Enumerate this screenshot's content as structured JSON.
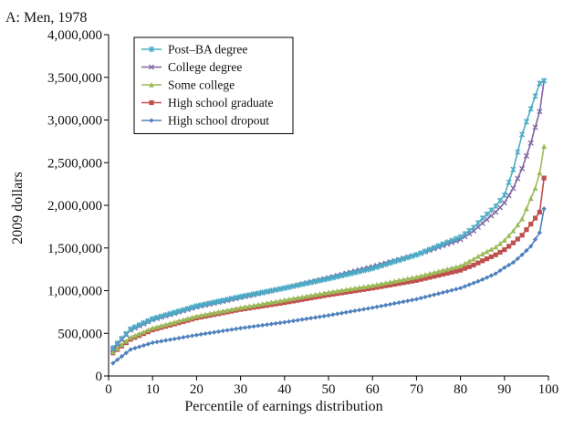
{
  "chart_data": {
    "type": "line",
    "title": "A: Men, 1978",
    "xlabel": "Percentile of earnings distribution",
    "ylabel": "2009 dollars",
    "xlim": [
      0,
      100
    ],
    "ylim": [
      0,
      4000000
    ],
    "xticks": [
      0,
      10,
      20,
      30,
      40,
      50,
      60,
      70,
      80,
      90,
      100
    ],
    "xtick_labels": [
      "0",
      "10",
      "20",
      "30",
      "40",
      "50",
      "60",
      "70",
      "80",
      "90",
      "100"
    ],
    "yticks": [
      0,
      500000,
      1000000,
      1500000,
      2000000,
      2500000,
      3000000,
      3500000,
      4000000
    ],
    "ytick_labels": [
      "0",
      "500,000",
      "1,000,000",
      "1,500,000",
      "2,000,000",
      "2,500,000",
      "3,000,000",
      "3,500,000",
      "4,000,000"
    ],
    "grid": false,
    "legend_position": "top-left",
    "series": [
      {
        "name": "Post–BA degree",
        "color": "#4bacc6",
        "marker": "star",
        "x": [
          1,
          5,
          10,
          20,
          30,
          40,
          50,
          60,
          70,
          80,
          83,
          85,
          88,
          90,
          92,
          94,
          96,
          98,
          99
        ],
        "y": [
          330000,
          550000,
          670000,
          820000,
          930000,
          1030000,
          1140000,
          1260000,
          1420000,
          1630000,
          1740000,
          1850000,
          1990000,
          2120000,
          2420000,
          2830000,
          3130000,
          3430000,
          3460000
        ]
      },
      {
        "name": "College degree",
        "color": "#8064a2",
        "marker": "x",
        "x": [
          1,
          5,
          10,
          20,
          30,
          40,
          50,
          60,
          70,
          80,
          83,
          85,
          88,
          90,
          92,
          94,
          96,
          98,
          99
        ],
        "y": [
          310000,
          540000,
          660000,
          810000,
          920000,
          1030000,
          1150000,
          1280000,
          1420000,
          1600000,
          1700000,
          1790000,
          1920000,
          2030000,
          2200000,
          2430000,
          2730000,
          3100000,
          3460000
        ]
      },
      {
        "name": "Some college",
        "color": "#9bbb59",
        "marker": "triangle",
        "x": [
          1,
          5,
          10,
          20,
          30,
          40,
          50,
          60,
          70,
          80,
          83,
          85,
          88,
          90,
          92,
          94,
          96,
          97,
          98,
          99
        ],
        "y": [
          280000,
          450000,
          560000,
          700000,
          800000,
          890000,
          980000,
          1060000,
          1160000,
          1290000,
          1370000,
          1430000,
          1510000,
          1590000,
          1700000,
          1840000,
          2080000,
          2200000,
          2380000,
          2690000
        ]
      },
      {
        "name": "High school graduate",
        "color": "#c0504d",
        "marker": "square",
        "x": [
          1,
          5,
          10,
          20,
          30,
          40,
          50,
          60,
          70,
          80,
          83,
          85,
          88,
          90,
          92,
          94,
          96,
          97,
          98,
          99
        ],
        "y": [
          270000,
          430000,
          540000,
          680000,
          780000,
          860000,
          950000,
          1030000,
          1120000,
          1240000,
          1300000,
          1350000,
          1420000,
          1480000,
          1560000,
          1650000,
          1780000,
          1850000,
          1920000,
          2320000
        ]
      },
      {
        "name": "High school dropout",
        "color": "#4f81bd",
        "marker": "diamond",
        "x": [
          1,
          5,
          10,
          20,
          30,
          40,
          50,
          60,
          70,
          80,
          83,
          85,
          88,
          90,
          92,
          94,
          96,
          97,
          98,
          99
        ],
        "y": [
          150000,
          310000,
          390000,
          480000,
          560000,
          630000,
          710000,
          800000,
          900000,
          1030000,
          1090000,
          1130000,
          1200000,
          1270000,
          1330000,
          1420000,
          1520000,
          1600000,
          1680000,
          1960000
        ]
      }
    ]
  }
}
